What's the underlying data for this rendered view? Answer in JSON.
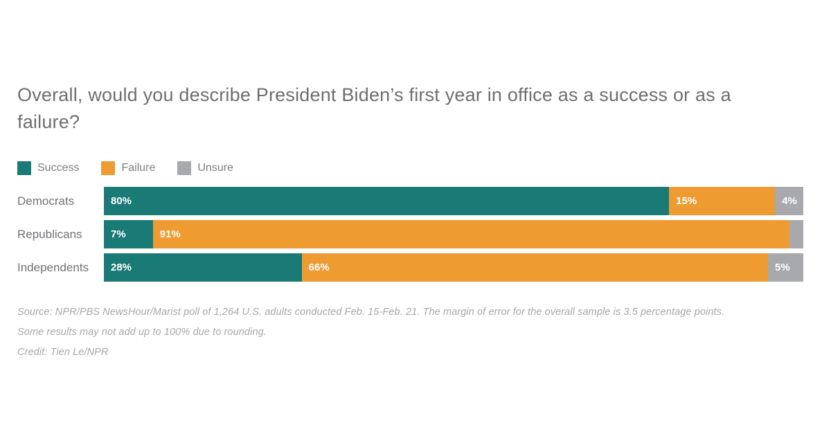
{
  "title": "Overall, would you describe President Biden’s first year in office as a success or as a failure?",
  "chart_data": {
    "type": "bar",
    "orientation": "horizontal",
    "stacked": true,
    "grid": false,
    "legend_position": "top",
    "xlim": [
      0,
      100
    ],
    "categories": [
      "Democrats",
      "Republicans",
      "Independents"
    ],
    "series": [
      {
        "name": "Success",
        "color": "#1a7a76",
        "values": [
          80,
          7,
          28
        ]
      },
      {
        "name": "Failure",
        "color": "#ee9b32",
        "values": [
          15,
          91,
          66
        ]
      },
      {
        "name": "Unsure",
        "color": "#a7a9ac",
        "values": [
          4,
          2,
          5
        ]
      }
    ],
    "value_labels": [
      [
        "80%",
        "15%",
        "4%"
      ],
      [
        "7%",
        "91%",
        ""
      ],
      [
        "28%",
        "66%",
        "5%"
      ]
    ]
  },
  "footer": {
    "source": "Source: NPR/PBS NewsHour/Marist poll of 1,264 U.S. adults conducted Feb. 15-Feb. 21. The margin of error for the overall sample is 3.5 percentage points.",
    "rounding_note": "Some results may not add up to 100% due to rounding.",
    "credit": "Credit: Tien Le/NPR"
  }
}
